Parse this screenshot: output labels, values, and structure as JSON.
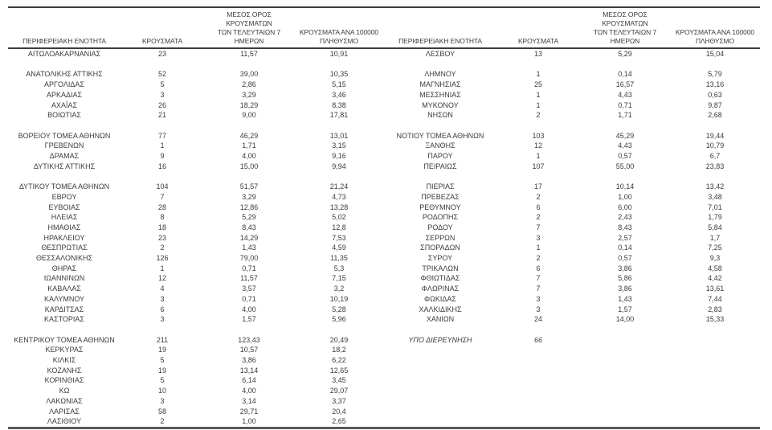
{
  "page": {
    "background": "#ffffff",
    "text_color": "#3c3c3c",
    "rule_color_top": "#3c3c3c",
    "rule_color_bottom": "#595959"
  },
  "table": {
    "header": {
      "region": "ΠΕΡΙΦΕΡΕΙΑΚΗ ΕΝΟΤΗΤΑ",
      "cases": "ΚΡΟΥΣΜΑΤΑ",
      "avg7": "ΜΕΣΟΣ ΟΡΟΣ ΚΡΟΥΣΜΑΤΩΝ\nΤΩΝ ΤΕΛΕΥΤΑΙΩΝ 7\nΗΜΕΡΩΝ",
      "per100k": "ΚΡΟΥΣΜΑΤΑ ΑΝΑ 100000\nΠΛΗΘΥΣΜΟ"
    },
    "rows": [
      {
        "left": [
          "ΑΙΤΩΛΟΑΚΑΡΝΑΝΙΑΣ",
          "23",
          "11,57",
          "10,91"
        ],
        "right": [
          "ΛΕΣΒΟΥ",
          "13",
          "5,29",
          "15,04"
        ]
      },
      {
        "left": null,
        "right": null
      },
      {
        "left": [
          "ΑΝΑΤΟΛΙΚΗΣ ΑΤΤΙΚΗΣ",
          "52",
          "39,00",
          "10,35"
        ],
        "right": [
          "ΛΗΜΝΟΥ",
          "1",
          "0,14",
          "5,79"
        ]
      },
      {
        "left": [
          "ΑΡΓΟΛΙΔΑΣ",
          "5",
          "2,86",
          "5,15"
        ],
        "right": [
          "ΜΑΓΝΗΣΙΑΣ",
          "25",
          "16,57",
          "13,16"
        ]
      },
      {
        "left": [
          "ΑΡΚΑΔΙΑΣ",
          "3",
          "3,29",
          "3,46"
        ],
        "right": [
          "ΜΕΣΣΗΝΙΑΣ",
          "1",
          "4,43",
          "0,63"
        ]
      },
      {
        "left": [
          "ΑΧΑΪΑΣ",
          "26",
          "18,29",
          "8,38"
        ],
        "right": [
          "ΜΥΚΟΝΟΥ",
          "1",
          "0,71",
          "9,87"
        ]
      },
      {
        "left": [
          "ΒΟΙΩΤΙΑΣ",
          "21",
          "9,00",
          "17,81"
        ],
        "right": [
          "ΝΗΣΩΝ",
          "2",
          "1,71",
          "2,68"
        ]
      },
      {
        "left": null,
        "right": null
      },
      {
        "left": [
          "ΒΟΡΕΙΟΥ ΤΟΜΕΑ ΑΘΗΝΩΝ",
          "77",
          "46,29",
          "13,01"
        ],
        "right": [
          "ΝΟΤΙΟΥ ΤΟΜΕΑ ΑΘΗΝΩΝ",
          "103",
          "45,29",
          "19,44"
        ]
      },
      {
        "left": [
          "ΓΡΕΒΕΝΩΝ",
          "1",
          "1,71",
          "3,15"
        ],
        "right": [
          "ΞΑΝΘΗΣ",
          "12",
          "4,43",
          "10,79"
        ]
      },
      {
        "left": [
          "ΔΡΑΜΑΣ",
          "9",
          "4,00",
          "9,16"
        ],
        "right": [
          "ΠΑΡΟΥ",
          "1",
          "0,57",
          "6,7"
        ]
      },
      {
        "left": [
          "ΔΥΤΙΚΗΣ ΑΤΤΙΚΗΣ",
          "16",
          "15,00",
          "9,94"
        ],
        "right": [
          "ΠΕΙΡΑΙΩΣ",
          "107",
          "55,00",
          "23,83"
        ]
      },
      {
        "left": null,
        "right": null
      },
      {
        "left": [
          "ΔΥΤΙΚΟΥ ΤΟΜΕΑ ΑΘΗΝΩΝ",
          "104",
          "51,57",
          "21,24"
        ],
        "right": [
          "ΠΙΕΡΙΑΣ",
          "17",
          "10,14",
          "13,42"
        ]
      },
      {
        "left": [
          "ΕΒΡΟΥ",
          "7",
          "3,29",
          "4,73"
        ],
        "right": [
          "ΠΡΕΒΕΖΑΣ",
          "2",
          "1,00",
          "3,48"
        ]
      },
      {
        "left": [
          "ΕΥΒΟΙΑΣ",
          "28",
          "12,86",
          "13,28"
        ],
        "right": [
          "ΡΕΘΥΜΝΟΥ",
          "6",
          "6,00",
          "7,01"
        ]
      },
      {
        "left": [
          "ΗΛΕΙΑΣ",
          "8",
          "5,29",
          "5,02"
        ],
        "right": [
          "ΡΟΔΟΠΗΣ",
          "2",
          "2,43",
          "1,79"
        ]
      },
      {
        "left": [
          "ΗΜΑΘΙΑΣ",
          "18",
          "8,43",
          "12,8"
        ],
        "right": [
          "ΡΟΔΟΥ",
          "7",
          "8,43",
          "5,84"
        ]
      },
      {
        "left": [
          "ΗΡΑΚΛΕΙΟΥ",
          "23",
          "14,29",
          "7,53"
        ],
        "right": [
          "ΣΕΡΡΩΝ",
          "3",
          "2,57",
          "1,7"
        ]
      },
      {
        "left": [
          "ΘΕΣΠΡΩΤΙΑΣ",
          "2",
          "1,43",
          "4,59"
        ],
        "right": [
          "ΣΠΟΡΑΔΩΝ",
          "1",
          "0,14",
          "7,25"
        ]
      },
      {
        "left": [
          "ΘΕΣΣΑΛΟΝΙΚΗΣ",
          "126",
          "79,00",
          "11,35"
        ],
        "right": [
          "ΣΥΡΟΥ",
          "2",
          "0,57",
          "9,3"
        ]
      },
      {
        "left": [
          "ΘΗΡΑΣ",
          "1",
          "0,71",
          "5,3"
        ],
        "right": [
          "ΤΡΙΚΑΛΩΝ",
          "6",
          "3,86",
          "4,58"
        ]
      },
      {
        "left": [
          "ΙΩΑΝΝΙΝΩΝ",
          "12",
          "11,57",
          "7,15"
        ],
        "right": [
          "ΦΘΙΩΤΙΔΑΣ",
          "7",
          "5,86",
          "4,42"
        ]
      },
      {
        "left": [
          "ΚΑΒΑΛΑΣ",
          "4",
          "3,57",
          "3,2"
        ],
        "right": [
          "ΦΛΩΡΙΝΑΣ",
          "7",
          "3,86",
          "13,61"
        ]
      },
      {
        "left": [
          "ΚΑΛΥΜΝΟΥ",
          "3",
          "0,71",
          "10,19"
        ],
        "right": [
          "ΦΩΚΙΔΑΣ",
          "3",
          "1,43",
          "7,44"
        ]
      },
      {
        "left": [
          "ΚΑΡΔΙΤΣΑΣ",
          "6",
          "4,00",
          "5,28"
        ],
        "right": [
          "ΧΑΛΚΙΔΙΚΗΣ",
          "3",
          "1,57",
          "2,83"
        ]
      },
      {
        "left": [
          "ΚΑΣΤΟΡΙΑΣ",
          "3",
          "1,57",
          "5,96"
        ],
        "right": [
          "ΧΑΝΙΩΝ",
          "24",
          "14,00",
          "15,33"
        ]
      },
      {
        "left": null,
        "right": null
      },
      {
        "left": [
          "ΚΕΝΤΡΙΚΟΥ ΤΟΜΕΑ ΑΘΗΝΩΝ",
          "211",
          "123,43",
          "20,49"
        ],
        "right": [
          "ΥΠΟ ΔΙΕΡΕΥΝΗΣΗ",
          "66",
          "",
          ""
        ],
        "right_italic": true
      },
      {
        "left": [
          "ΚΕΡΚΥΡΑΣ",
          "19",
          "10,57",
          "18,2"
        ],
        "right": null
      },
      {
        "left": [
          "ΚΙΛΚΙΣ",
          "5",
          "3,86",
          "6,22"
        ],
        "right": null
      },
      {
        "left": [
          "ΚΟΖΑΝΗΣ",
          "19",
          "13,14",
          "12,65"
        ],
        "right": null
      },
      {
        "left": [
          "ΚΟΡΙΝΘΙΑΣ",
          "5",
          "6,14",
          "3,45"
        ],
        "right": null
      },
      {
        "left": [
          "ΚΩ",
          "10",
          "4,00",
          "29,07"
        ],
        "right": null
      },
      {
        "left": [
          "ΛΑΚΩΝΙΑΣ",
          "3",
          "3,14",
          "3,37"
        ],
        "right": null
      },
      {
        "left": [
          "ΛΑΡΙΣΑΣ",
          "58",
          "29,71",
          "20,4"
        ],
        "right": null
      },
      {
        "left": [
          "ΛΑΣΙΘΙΟΥ",
          "2",
          "1,00",
          "2,65"
        ],
        "right": null
      }
    ]
  }
}
